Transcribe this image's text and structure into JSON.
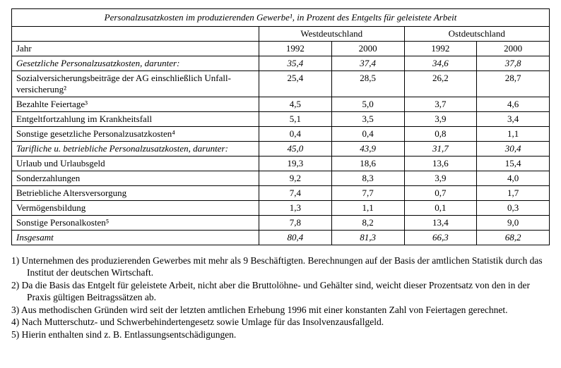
{
  "title": "Personalzusatzkosten im produzierenden Gewerbe¹, in Prozent des Entgelts für geleistete Arbeit",
  "regions": {
    "west": "Westdeutschland",
    "east": "Ostdeutschland"
  },
  "yearLabel": "Jahr",
  "years": {
    "w1": "1992",
    "w2": "2000",
    "e1": "1992",
    "e2": "2000"
  },
  "rows": [
    {
      "italic": true,
      "label": "Gesetzliche Personalzusatzkosten, darunter:",
      "w1": "35,4",
      "w2": "37,4",
      "e1": "34,6",
      "e2": "37,8"
    },
    {
      "italic": false,
      "label": "Sozialversicherungsbeiträge der AG einschließlich Unfall-versicherung²",
      "w1": "25,4",
      "w2": "28,5",
      "e1": "26,2",
      "e2": "28,7"
    },
    {
      "italic": false,
      "label": "Bezahlte Feiertage³",
      "w1": "4,5",
      "w2": "5,0",
      "e1": "3,7",
      "e2": "4,6"
    },
    {
      "italic": false,
      "label": "Entgeltfortzahlung im Krankheitsfall",
      "w1": "5,1",
      "w2": "3,5",
      "e1": "3,9",
      "e2": "3,4"
    },
    {
      "italic": false,
      "label": "Sonstige gesetzliche Personalzusatzkosten⁴",
      "w1": "0,4",
      "w2": "0,4",
      "e1": "0,8",
      "e2": "1,1"
    },
    {
      "italic": true,
      "label": "Tarifliche u. betriebliche Personalzusatzkosten, darunter:",
      "w1": "45,0",
      "w2": "43,9",
      "e1": "31,7",
      "e2": "30,4"
    },
    {
      "italic": false,
      "label": "Urlaub und Urlaubsgeld",
      "w1": "19,3",
      "w2": "18,6",
      "e1": "13,6",
      "e2": "15,4"
    },
    {
      "italic": false,
      "label": "Sonderzahlungen",
      "w1": "9,2",
      "w2": "8,3",
      "e1": "3,9",
      "e2": "4,0"
    },
    {
      "italic": false,
      "label": "Betriebliche Altersversorgung",
      "w1": "7,4",
      "w2": "7,7",
      "e1": "0,7",
      "e2": "1,7"
    },
    {
      "italic": false,
      "label": "Vermögensbildung",
      "w1": "1,3",
      "w2": "1,1",
      "e1": "0,1",
      "e2": "0,3"
    },
    {
      "italic": false,
      "label": "Sonstige Personalkosten⁵",
      "w1": "7,8",
      "w2": "8,2",
      "e1": "13,4",
      "e2": "9,0"
    },
    {
      "italic": true,
      "label": "Insgesamt",
      "w1": "80,4",
      "w2": "81,3",
      "e1": "66,3",
      "e2": "68,2"
    }
  ],
  "footnotes": [
    "1)  Unternehmen des produzierenden Gewerbes mit mehr als 9 Beschäftigten. Berechnungen auf der Basis der amtlichen Statistik durch das Institut der deutschen Wirtschaft.",
    "2)  Da die Basis das Entgelt für geleistete Arbeit, nicht aber die Bruttolöhne- und Gehälter sind, weicht dieser Prozentsatz von den in der Praxis gültigen Beitragssätzen ab.",
    "3)  Aus methodischen Gründen wird seit der letzten amtlichen Erhebung 1996 mit einer konstanten Zahl von Feiertagen gerechnet.",
    "4) Nach Mutterschutz- und Schwerbehindertengesetz sowie Umlage für das Insolvenzausfallgeld.",
    "5) Hierin enthalten sind z. B. Entlassungsentschädigungen."
  ]
}
